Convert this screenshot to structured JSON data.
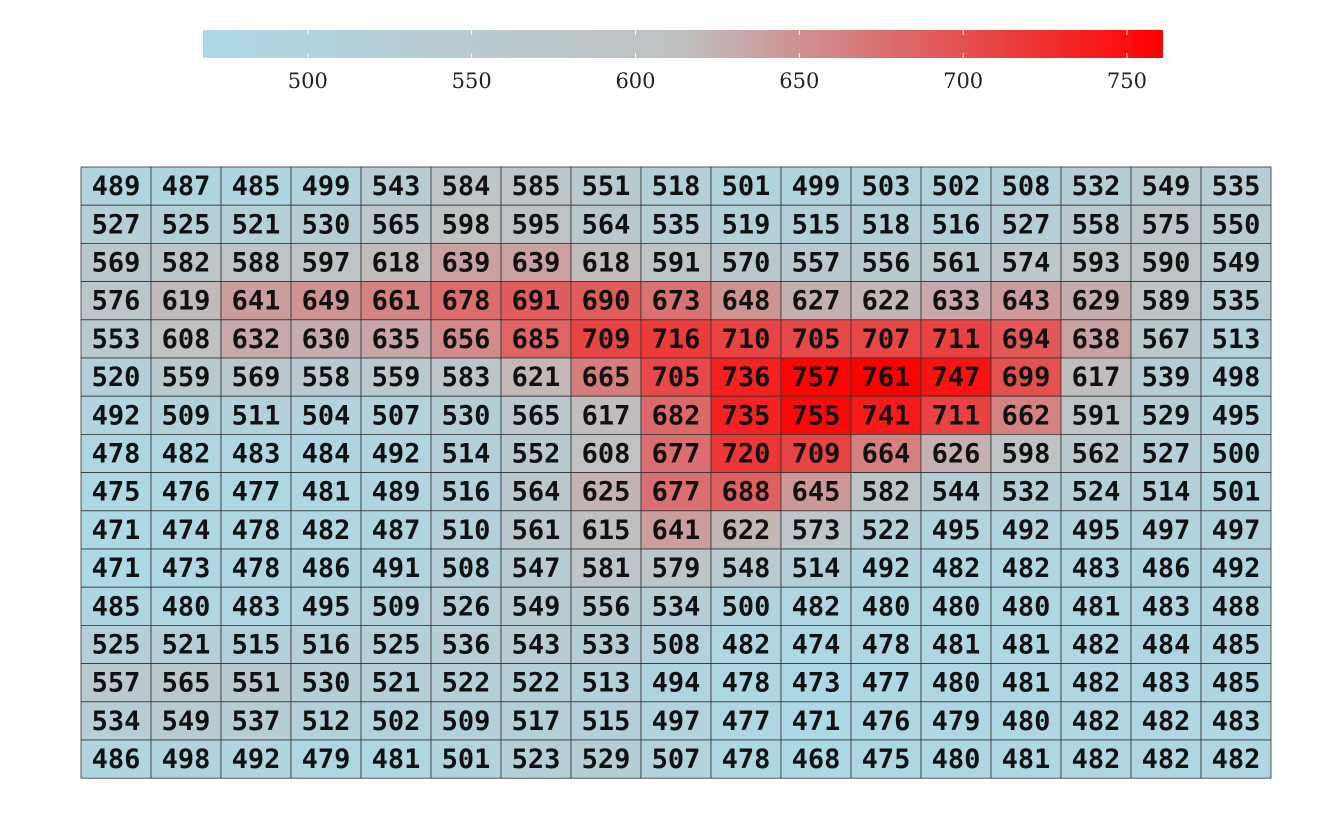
{
  "chart_data": {
    "type": "heatmap",
    "title": "",
    "xlabel": "",
    "ylabel": "",
    "colorbar": {
      "min": 468,
      "max": 761,
      "low_color": "#add8e6",
      "mid_color": "#c0c0c0",
      "high_color": "#ff0000",
      "orientation": "horizontal",
      "location": "top",
      "ticks": [
        500,
        550,
        600,
        650,
        700,
        750
      ],
      "tick_labels": [
        "500",
        "550",
        "600",
        "650",
        "700",
        "750"
      ]
    },
    "rows": 16,
    "cols": 17,
    "values": [
      [
        489,
        487,
        485,
        499,
        543,
        584,
        585,
        551,
        518,
        501,
        499,
        503,
        502,
        508,
        532,
        549,
        535
      ],
      [
        527,
        525,
        521,
        530,
        565,
        598,
        595,
        564,
        535,
        519,
        515,
        518,
        516,
        527,
        558,
        575,
        550
      ],
      [
        569,
        582,
        588,
        597,
        618,
        639,
        639,
        618,
        591,
        570,
        557,
        556,
        561,
        574,
        593,
        590,
        549
      ],
      [
        576,
        619,
        641,
        649,
        661,
        678,
        691,
        690,
        673,
        648,
        627,
        622,
        633,
        643,
        629,
        589,
        535
      ],
      [
        553,
        608,
        632,
        630,
        635,
        656,
        685,
        709,
        716,
        710,
        705,
        707,
        711,
        694,
        638,
        567,
        513
      ],
      [
        520,
        559,
        569,
        558,
        559,
        583,
        621,
        665,
        705,
        736,
        757,
        761,
        747,
        699,
        617,
        539,
        498
      ],
      [
        492,
        509,
        511,
        504,
        507,
        530,
        565,
        617,
        682,
        735,
        755,
        741,
        711,
        662,
        591,
        529,
        495
      ],
      [
        478,
        482,
        483,
        484,
        492,
        514,
        552,
        608,
        677,
        720,
        709,
        664,
        626,
        598,
        562,
        527,
        500
      ],
      [
        475,
        476,
        477,
        481,
        489,
        516,
        564,
        625,
        677,
        688,
        645,
        582,
        544,
        532,
        524,
        514,
        501
      ],
      [
        471,
        474,
        478,
        482,
        487,
        510,
        561,
        615,
        641,
        622,
        573,
        522,
        495,
        492,
        495,
        497,
        497
      ],
      [
        471,
        473,
        478,
        486,
        491,
        508,
        547,
        581,
        579,
        548,
        514,
        492,
        482,
        482,
        483,
        486,
        492
      ],
      [
        485,
        480,
        483,
        495,
        509,
        526,
        549,
        556,
        534,
        500,
        482,
        480,
        480,
        480,
        481,
        483,
        488
      ],
      [
        525,
        521,
        515,
        516,
        525,
        536,
        543,
        533,
        508,
        482,
        474,
        478,
        481,
        481,
        482,
        484,
        485
      ],
      [
        557,
        565,
        551,
        530,
        521,
        522,
        522,
        513,
        494,
        478,
        473,
        477,
        480,
        481,
        482,
        483,
        485
      ],
      [
        534,
        549,
        537,
        512,
        502,
        509,
        517,
        515,
        497,
        477,
        471,
        476,
        479,
        480,
        482,
        482,
        483
      ],
      [
        486,
        498,
        492,
        479,
        481,
        501,
        523,
        529,
        507,
        478,
        468,
        475,
        480,
        481,
        482,
        482,
        482
      ]
    ]
  }
}
